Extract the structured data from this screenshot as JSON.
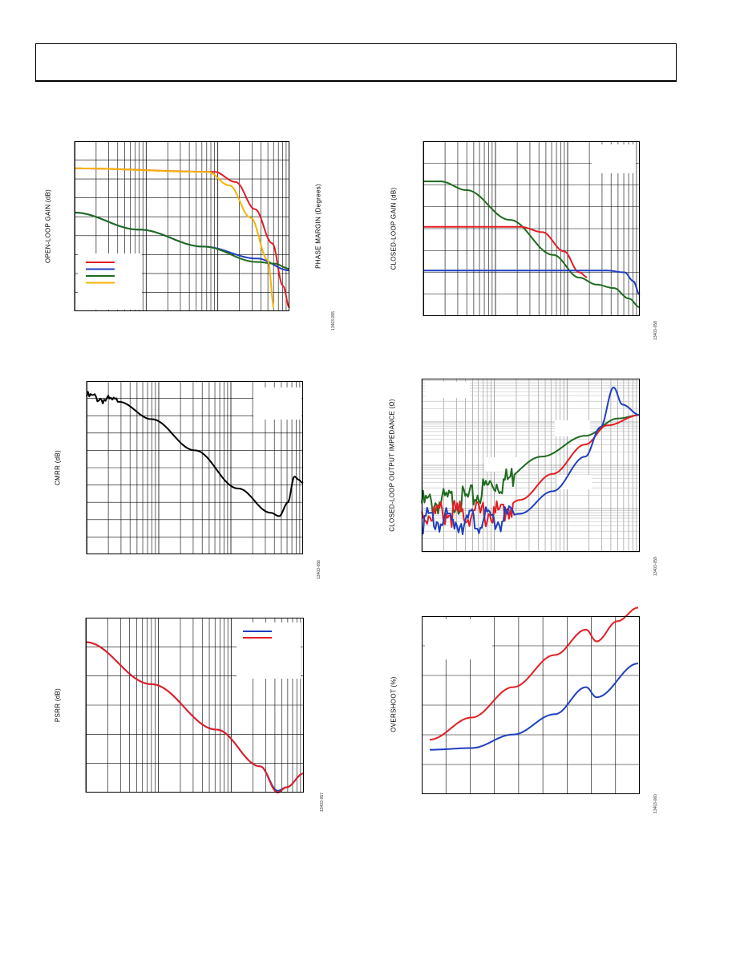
{
  "page": {
    "figures": [
      {
        "id": "fig-open-loop",
        "ylabel": "OPEN-LOOP GAIN (dB)",
        "ylabel2": "PHASE MARGIN (Degrees)",
        "fig_id": "13403-055"
      },
      {
        "id": "fig-closed-loop",
        "ylabel": "CLOSED-LOOP GAIN (dB)",
        "fig_id": "13403-058"
      },
      {
        "id": "fig-cmrr",
        "ylabel": "CMRR (dB)",
        "fig_id": "13403-056"
      },
      {
        "id": "fig-impedance",
        "ylabel": "CLOSED-LOOP OUTPUT IMPEDANCE (Ω)",
        "fig_id": "13403-059"
      },
      {
        "id": "fig-psrr",
        "ylabel": "PSRR (dB)",
        "fig_id": "13403-057"
      },
      {
        "id": "fig-overshoot",
        "ylabel": "OVERSHOOT (%)",
        "fig_id": "13403-060"
      }
    ]
  },
  "chart_data": [
    {
      "type": "line",
      "ylabel": "OPEN-LOOP GAIN (dB)",
      "ylabel2": "PHASE MARGIN (Degrees)",
      "xscale": "log",
      "legend": "lower-left",
      "series": [
        {
          "color": "#e31e24",
          "points": [
            [
              0.0,
              0.84
            ],
            [
              0.65,
              0.82
            ],
            [
              0.75,
              0.76
            ],
            [
              0.84,
              0.6
            ],
            [
              0.92,
              0.4
            ],
            [
              0.97,
              0.15
            ],
            [
              1.0,
              0.02
            ]
          ]
        },
        {
          "color": "#1f3fbf",
          "points": [
            [
              0.0,
              0.58
            ],
            [
              0.3,
              0.48
            ],
            [
              0.6,
              0.38
            ],
            [
              0.85,
              0.31
            ],
            [
              1.0,
              0.24
            ]
          ]
        },
        {
          "color": "#1f6b1f",
          "points": [
            [
              0.0,
              0.58
            ],
            [
              0.3,
              0.48
            ],
            [
              0.6,
              0.38
            ],
            [
              0.85,
              0.29
            ],
            [
              0.93,
              0.28
            ],
            [
              1.0,
              0.25
            ]
          ]
        },
        {
          "color": "#f5b400",
          "points": [
            [
              0.0,
              0.84
            ],
            [
              0.62,
              0.82
            ],
            [
              0.72,
              0.74
            ],
            [
              0.82,
              0.55
            ],
            [
              0.9,
              0.3
            ],
            [
              0.93,
              0.0
            ]
          ]
        }
      ]
    },
    {
      "type": "line",
      "ylabel": "CLOSED-LOOP GAIN (dB)",
      "xscale": "log",
      "series": [
        {
          "color": "#1f6b1f",
          "points": [
            [
              0.0,
              0.77
            ],
            [
              0.08,
              0.77
            ],
            [
              0.2,
              0.72
            ],
            [
              0.4,
              0.55
            ],
            [
              0.6,
              0.35
            ],
            [
              0.72,
              0.22
            ],
            [
              0.8,
              0.18
            ],
            [
              0.88,
              0.16
            ],
            [
              0.95,
              0.1
            ],
            [
              1.0,
              0.05
            ]
          ]
        },
        {
          "color": "#e31e24",
          "points": [
            [
              0.0,
              0.51
            ],
            [
              0.45,
              0.51
            ],
            [
              0.55,
              0.48
            ],
            [
              0.65,
              0.37
            ],
            [
              0.72,
              0.25
            ],
            [
              0.76,
              0.22
            ]
          ]
        },
        {
          "color": "#1f3fbf",
          "points": [
            [
              0.0,
              0.26
            ],
            [
              0.85,
              0.26
            ],
            [
              0.93,
              0.25
            ],
            [
              0.97,
              0.2
            ],
            [
              1.0,
              0.12
            ]
          ]
        }
      ]
    },
    {
      "type": "line",
      "ylabel": "CMRR (dB)",
      "xscale": "log",
      "series": [
        {
          "color": "#000000",
          "points": [
            [
              0.0,
              0.91
            ],
            [
              0.15,
              0.88
            ],
            [
              0.3,
              0.78
            ],
            [
              0.5,
              0.6
            ],
            [
              0.7,
              0.38
            ],
            [
              0.85,
              0.24
            ],
            [
              0.89,
              0.22
            ],
            [
              0.93,
              0.3
            ],
            [
              0.96,
              0.45
            ],
            [
              0.98,
              0.43
            ],
            [
              1.0,
              0.41
            ]
          ]
        }
      ]
    },
    {
      "type": "line",
      "ylabel": "CLOSED-LOOP OUTPUT IMPEDANCE (Ω)",
      "xscale": "log",
      "yscale": "log",
      "series": [
        {
          "color": "#1f6b1f",
          "points": [
            [
              0.0,
              0.28
            ],
            [
              0.2,
              0.3
            ],
            [
              0.35,
              0.4
            ],
            [
              0.55,
              0.55
            ],
            [
              0.75,
              0.67
            ],
            [
              0.9,
              0.77
            ],
            [
              1.0,
              0.79
            ]
          ]
        },
        {
          "color": "#e31e24",
          "points": [
            [
              0.0,
              0.22
            ],
            [
              0.35,
              0.22
            ],
            [
              0.45,
              0.3
            ],
            [
              0.6,
              0.45
            ],
            [
              0.75,
              0.62
            ],
            [
              0.85,
              0.73
            ],
            [
              1.0,
              0.79
            ]
          ]
        },
        {
          "color": "#1f3fbf",
          "points": [
            [
              0.0,
              0.18
            ],
            [
              0.35,
              0.18
            ],
            [
              0.45,
              0.22
            ],
            [
              0.6,
              0.35
            ],
            [
              0.75,
              0.55
            ],
            [
              0.82,
              0.72
            ],
            [
              0.88,
              0.95
            ],
            [
              0.92,
              0.85
            ],
            [
              1.0,
              0.79
            ]
          ]
        }
      ]
    },
    {
      "type": "line",
      "ylabel": "PSRR (dB)",
      "xscale": "log",
      "series": [
        {
          "color": "#1f3fbf",
          "points": [
            [
              0.0,
              0.86
            ],
            [
              0.3,
              0.62
            ],
            [
              0.6,
              0.36
            ],
            [
              0.8,
              0.15
            ],
            [
              0.88,
              0.01
            ],
            [
              0.92,
              0.03
            ],
            [
              1.0,
              0.11
            ]
          ]
        },
        {
          "color": "#e31e24",
          "points": [
            [
              0.0,
              0.86
            ],
            [
              0.3,
              0.62
            ],
            [
              0.6,
              0.36
            ],
            [
              0.8,
              0.15
            ],
            [
              0.88,
              0.0
            ],
            [
              0.92,
              0.03
            ],
            [
              1.0,
              0.11
            ]
          ]
        }
      ]
    },
    {
      "type": "line",
      "ylabel": "OVERSHOOT (%)",
      "series": [
        {
          "color": "#e31e24",
          "points": [
            [
              0.0,
              0.27
            ],
            [
              0.2,
              0.4
            ],
            [
              0.4,
              0.58
            ],
            [
              0.6,
              0.77
            ],
            [
              0.75,
              0.92
            ],
            [
              0.8,
              0.85
            ],
            [
              0.9,
              0.97
            ],
            [
              1.0,
              1.05
            ]
          ]
        },
        {
          "color": "#1f3fbf",
          "points": [
            [
              0.0,
              0.21
            ],
            [
              0.2,
              0.22
            ],
            [
              0.4,
              0.3
            ],
            [
              0.6,
              0.42
            ],
            [
              0.75,
              0.58
            ],
            [
              0.8,
              0.52
            ],
            [
              1.0,
              0.72
            ]
          ]
        }
      ]
    }
  ]
}
